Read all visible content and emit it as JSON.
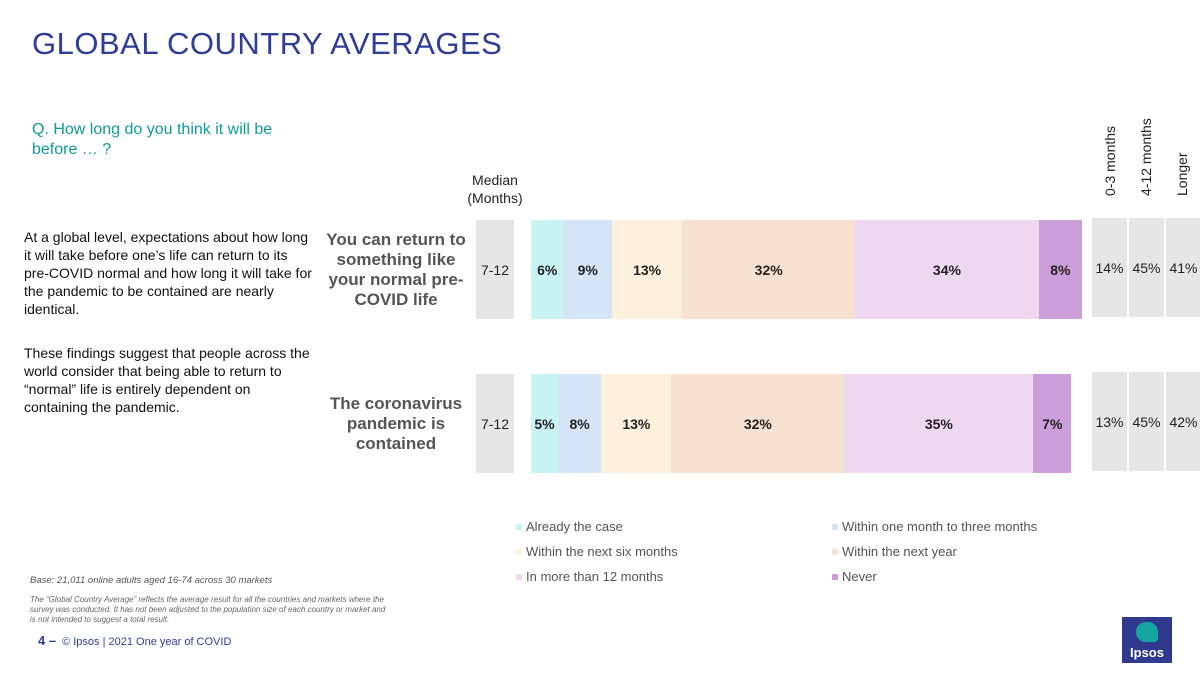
{
  "title": "GLOBAL COUNTRY AVERAGES",
  "question": "Q. How long do you think it will be before … ?",
  "description": [
    "At a global level, expectations about how long it will take before one’s life can return to its pre-COVID normal and how long it will take for the pandemic to be contained are nearly identical.",
    "These findings suggest that people across the world consider that being able to return to “normal” life is entirely dependent on containing the pandemic."
  ],
  "median_header": "Median (Months)",
  "summary_headers": [
    "0-3 months",
    "4-12 months",
    "Longer"
  ],
  "legend": [
    {
      "label": "Already the case",
      "color": "#c8f4f4"
    },
    {
      "label": "Within one month to three months",
      "color": "#d6e4f7"
    },
    {
      "label": "Within the next six months",
      "color": "#fdf0dc"
    },
    {
      "label": "Within the next year",
      "color": "#f7e2d2"
    },
    {
      "label": "In more than 12 months",
      "color": "#eed8ef"
    },
    {
      "label": "Never",
      "color": "#cd9fda"
    }
  ],
  "chart_data": {
    "type": "bar",
    "orientation": "horizontal-stacked",
    "title": "GLOBAL COUNTRY AVERAGES",
    "categories": [
      "You can return to something like your normal pre-COVID life",
      "The coronavirus pandemic is contained"
    ],
    "series": [
      {
        "name": "Already the case",
        "values": [
          6,
          5
        ],
        "labels": [
          "6%",
          "5%"
        ]
      },
      {
        "name": "Within one month to three months",
        "values": [
          9,
          8
        ],
        "labels": [
          "9%",
          "8%"
        ]
      },
      {
        "name": "Within the next six months",
        "values": [
          13,
          13
        ],
        "labels": [
          "13%",
          "13%"
        ]
      },
      {
        "name": "Within the next year",
        "values": [
          32,
          32
        ],
        "labels": [
          "32%",
          "32%"
        ]
      },
      {
        "name": "In more than 12 months",
        "values": [
          34,
          35
        ],
        "labels": [
          "34%",
          "35%"
        ]
      },
      {
        "name": "Never",
        "values": [
          8,
          7
        ],
        "labels": [
          "8%",
          "7%"
        ]
      }
    ],
    "median": [
      "7-12",
      "7-12"
    ],
    "summary": [
      [
        "14%",
        "45%",
        "41%"
      ],
      [
        "13%",
        "45%",
        "42%"
      ]
    ],
    "xlim": [
      0,
      102
    ]
  },
  "base_note": "Base: 21,011 online adults aged 16-74 across 30 markets",
  "footnote": "The “Global Country Average” reflects the average result for all the countries and markets where the survey was conducted. It has not been adjusted to the population size of each country or market and is not intended to suggest a total result.",
  "footer": {
    "page": "4 –",
    "text": "© Ipsos | 2021 One year of COVID"
  },
  "logo_text": "Ipsos"
}
